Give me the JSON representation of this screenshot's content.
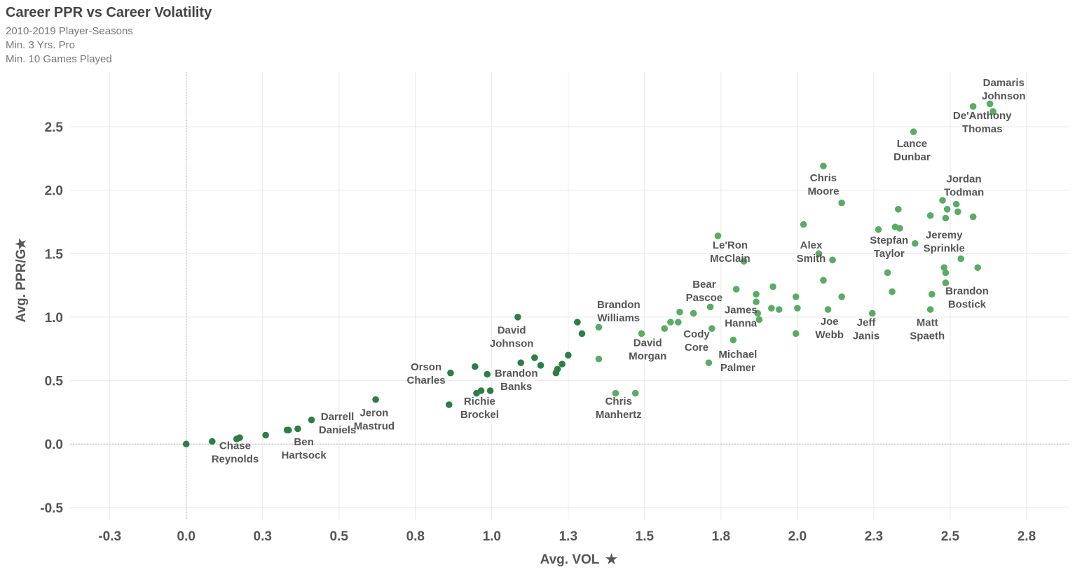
{
  "header": {
    "title": "Career PPR vs Career Volatility",
    "subtitles": [
      "2010-2019 Player-Seasons",
      "Min. 3 Yrs. Pro",
      "Min. 10 Games Played"
    ]
  },
  "icons": {
    "axis_pin": "pin-icon"
  },
  "colors": {
    "point_dark": "#2e7d46",
    "point_light": "#5aab65",
    "grid": "#e8e8e8"
  },
  "chart_data": {
    "type": "scatter",
    "title": "Career PPR vs Career Volatility",
    "xlabel": "Avg. VOL",
    "ylabel": "Avg. PPR/G",
    "xlim": [
      -0.38,
      2.89
    ],
    "ylim": [
      -0.6,
      2.93
    ],
    "x_ticks": [
      -0.3,
      0.0,
      0.3,
      0.5,
      0.8,
      1.0,
      1.3,
      1.5,
      1.8,
      2.0,
      2.3,
      2.5,
      2.8
    ],
    "x_tick_values": [
      -0.25,
      0.0,
      0.25,
      0.5,
      0.75,
      1.0,
      1.25,
      1.5,
      1.75,
      2.0,
      2.25,
      2.5,
      2.75
    ],
    "y_ticks": [
      "2.5",
      "2.0",
      "1.5",
      "1.0",
      "0.5",
      "0.0",
      "-0.5"
    ],
    "y_tick_values": [
      2.5,
      2.0,
      1.5,
      1.0,
      0.5,
      0.0,
      -0.5
    ],
    "grid": true,
    "points": [
      [
        0.0,
        0.0
      ],
      [
        0.085,
        0.02
      ],
      [
        0.165,
        0.04
      ],
      [
        0.175,
        0.05
      ],
      [
        0.26,
        0.07
      ],
      [
        0.33,
        0.11
      ],
      [
        0.335,
        0.11
      ],
      [
        0.365,
        0.12
      ],
      [
        0.41,
        0.19
      ],
      [
        0.62,
        0.35
      ],
      [
        0.86,
        0.31
      ],
      [
        0.865,
        0.56
      ],
      [
        0.945,
        0.61
      ],
      [
        0.95,
        0.4
      ],
      [
        0.965,
        0.42
      ],
      [
        0.985,
        0.55
      ],
      [
        0.995,
        0.42
      ],
      [
        1.085,
        1.0
      ],
      [
        1.095,
        0.64
      ],
      [
        1.14,
        0.68
      ],
      [
        1.16,
        0.62
      ],
      [
        1.21,
        0.56
      ],
      [
        1.215,
        0.59
      ],
      [
        1.23,
        0.63
      ],
      [
        1.25,
        0.7
      ],
      [
        1.28,
        0.96
      ],
      [
        1.295,
        0.87
      ],
      [
        1.35,
        0.67
      ],
      [
        1.35,
        0.92
      ],
      [
        1.405,
        0.4
      ],
      [
        1.47,
        0.4
      ],
      [
        1.49,
        0.87
      ],
      [
        1.565,
        0.91
      ],
      [
        1.585,
        0.96
      ],
      [
        1.61,
        0.96
      ],
      [
        1.615,
        1.04
      ],
      [
        1.66,
        1.03
      ],
      [
        1.71,
        0.64
      ],
      [
        1.715,
        1.08
      ],
      [
        1.72,
        0.91
      ],
      [
        1.74,
        1.64
      ],
      [
        1.79,
        0.82
      ],
      [
        1.8,
        1.22
      ],
      [
        1.825,
        1.44
      ],
      [
        1.865,
        1.18
      ],
      [
        1.865,
        1.12
      ],
      [
        1.87,
        1.03
      ],
      [
        1.875,
        0.98
      ],
      [
        1.915,
        1.07
      ],
      [
        1.92,
        1.24
      ],
      [
        1.94,
        1.06
      ],
      [
        1.995,
        0.87
      ],
      [
        1.995,
        1.16
      ],
      [
        2.0,
        1.07
      ],
      [
        2.02,
        1.73
      ],
      [
        2.07,
        1.5
      ],
      [
        2.085,
        1.29
      ],
      [
        2.085,
        2.19
      ],
      [
        2.1,
        1.06
      ],
      [
        2.115,
        1.45
      ],
      [
        2.145,
        1.16
      ],
      [
        2.145,
        1.9
      ],
      [
        2.245,
        1.03
      ],
      [
        2.265,
        1.69
      ],
      [
        2.295,
        1.35
      ],
      [
        2.31,
        1.2
      ],
      [
        2.32,
        1.71
      ],
      [
        2.33,
        1.85
      ],
      [
        2.335,
        1.7
      ],
      [
        2.38,
        2.46
      ],
      [
        2.385,
        1.58
      ],
      [
        2.435,
        1.06
      ],
      [
        2.435,
        1.8
      ],
      [
        2.44,
        1.18
      ],
      [
        2.475,
        1.92
      ],
      [
        2.48,
        1.39
      ],
      [
        2.485,
        1.35
      ],
      [
        2.485,
        1.27
      ],
      [
        2.485,
        1.78
      ],
      [
        2.49,
        1.85
      ],
      [
        2.52,
        1.89
      ],
      [
        2.525,
        1.83
      ],
      [
        2.535,
        1.46
      ],
      [
        2.575,
        2.66
      ],
      [
        2.575,
        1.79
      ],
      [
        2.59,
        1.39
      ],
      [
        2.63,
        2.68
      ],
      [
        2.64,
        2.62
      ]
    ],
    "annotations": [
      {
        "text": [
          "Damaris",
          "Johnson"
        ],
        "x": 2.675,
        "y": 2.82
      },
      {
        "text": [
          "De'Anthony",
          "Thomas"
        ],
        "x": 2.605,
        "y": 2.56
      },
      {
        "text": [
          "Lance",
          "Dunbar"
        ],
        "x": 2.375,
        "y": 2.34
      },
      {
        "text": [
          "Chris",
          "Moore"
        ],
        "x": 2.085,
        "y": 2.07
      },
      {
        "text": [
          "Jordan",
          "Todman"
        ],
        "x": 2.545,
        "y": 2.06
      },
      {
        "text": [
          "Jeremy",
          "Sprinkle"
        ],
        "x": 2.48,
        "y": 1.62
      },
      {
        "text": [
          "Stepfan",
          "Taylor"
        ],
        "x": 2.3,
        "y": 1.58
      },
      {
        "text": [
          "Le'Ron",
          "McClain"
        ],
        "x": 1.78,
        "y": 1.54
      },
      {
        "text": [
          "Alex",
          "Smith"
        ],
        "x": 2.045,
        "y": 1.54
      },
      {
        "text": [
          "Bear",
          "Pascoe"
        ],
        "x": 1.695,
        "y": 1.23
      },
      {
        "text": [
          "Brandon",
          "Bostick"
        ],
        "x": 2.555,
        "y": 1.18
      },
      {
        "text": [
          "James",
          "Hanna"
        ],
        "x": 1.815,
        "y": 1.03
      },
      {
        "text": [
          "Brandon",
          "Williams"
        ],
        "x": 1.415,
        "y": 1.07
      },
      {
        "text": [
          "Joe",
          "Webb"
        ],
        "x": 2.105,
        "y": 0.94
      },
      {
        "text": [
          "Jeff",
          "Janis"
        ],
        "x": 2.225,
        "y": 0.93
      },
      {
        "text": [
          "Matt",
          "Spaeth"
        ],
        "x": 2.425,
        "y": 0.93
      },
      {
        "text": [
          "David",
          "Johnson"
        ],
        "x": 1.065,
        "y": 0.87
      },
      {
        "text": [
          "Cody",
          "Core"
        ],
        "x": 1.67,
        "y": 0.84
      },
      {
        "text": [
          "David",
          "Morgan"
        ],
        "x": 1.51,
        "y": 0.77
      },
      {
        "text": [
          "Michael",
          "Palmer"
        ],
        "x": 1.805,
        "y": 0.68
      },
      {
        "text": [
          "Orson",
          "Charles"
        ],
        "x": 0.785,
        "y": 0.58
      },
      {
        "text": [
          "Brandon",
          "Banks"
        ],
        "x": 1.08,
        "y": 0.53
      },
      {
        "text": [
          "Richie",
          "Brockel"
        ],
        "x": 0.96,
        "y": 0.31
      },
      {
        "text": [
          "Chris",
          "Manhertz"
        ],
        "x": 1.415,
        "y": 0.31
      },
      {
        "text": [
          "Jeron",
          "Mastrud"
        ],
        "x": 0.615,
        "y": 0.22
      },
      {
        "text": [
          "Darrell",
          "Daniels"
        ],
        "x": 0.495,
        "y": 0.19
      },
      {
        "text": [
          "Ben",
          "Hartsock"
        ],
        "x": 0.385,
        "y": -0.01
      },
      {
        "text": [
          "Chase",
          "Reynolds"
        ],
        "x": 0.16,
        "y": -0.04
      }
    ]
  }
}
